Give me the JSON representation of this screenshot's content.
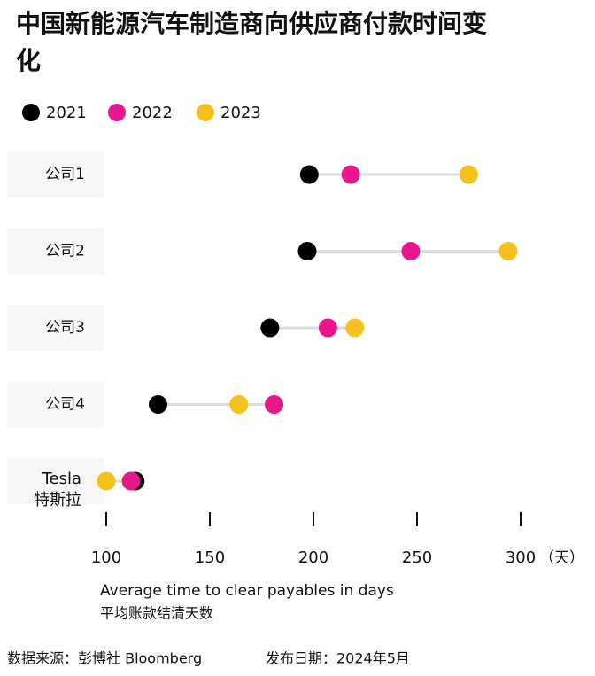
{
  "chart_data": {
    "type": "dot",
    "title": "中国新能源汽车制造商向供应商付款时间变化",
    "categories": [
      "公司1",
      "公司2",
      "公司3",
      "公司4",
      "Tesla"
    ],
    "category_sublabels": [
      null,
      null,
      null,
      null,
      "特斯拉"
    ],
    "series": [
      {
        "name": "2021",
        "color": "#000000",
        "values": [
          198,
          197,
          179,
          125,
          114
        ]
      },
      {
        "name": "2022",
        "color": "#e8178a",
        "values": [
          218,
          247,
          207,
          181,
          112
        ]
      },
      {
        "name": "2023",
        "color": "#f5c21b",
        "values": [
          275,
          294,
          220,
          164,
          100
        ]
      }
    ],
    "xlim": [
      100,
      300
    ],
    "xticks": [
      100,
      150,
      200,
      250,
      300
    ],
    "x_unit": "（天）",
    "x_label": "Average time to clear payables in days",
    "x_label_cn": "平均账款结清天数",
    "source": "数据来源：彭博社 Bloomberg",
    "date": "发布日期：2024年5月"
  }
}
